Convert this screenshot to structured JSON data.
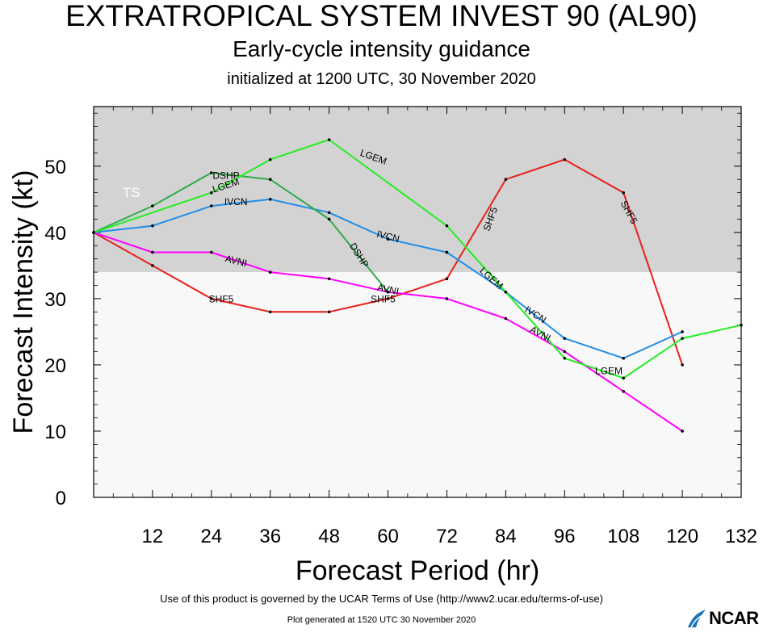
{
  "header": {
    "title": "EXTRATROPICAL SYSTEM INVEST 90 (AL90)",
    "subtitle": "Early-cycle intensity guidance",
    "init": "initialized at 1200 UTC, 30 November 2020"
  },
  "footer": {
    "terms": "Use of this product is governed by the UCAR Terms of Use (http://www2.ucar.edu/terms-of-use)",
    "generated": "Plot generated at 1520 UTC   30 November 2020",
    "logo_text": "NCAR"
  },
  "chart_data": {
    "type": "line",
    "xlabel": "Forecast Period (hr)",
    "ylabel": "Forecast Intensity (kt)",
    "xlim": [
      0,
      132
    ],
    "ylim": [
      0,
      59
    ],
    "xticks": [
      12,
      24,
      36,
      48,
      60,
      72,
      84,
      96,
      108,
      120,
      132
    ],
    "yticks": [
      0,
      10,
      20,
      30,
      40,
      50
    ],
    "threshold_band": {
      "label": "TS",
      "from": 34,
      "to": 59,
      "color": "#d3d3d3"
    },
    "lower_band_color": "#f8f8f8",
    "series": [
      {
        "name": "SHF5",
        "color": "#e8201c",
        "x": [
          0,
          12,
          24,
          36,
          48,
          60,
          72,
          84,
          96,
          108,
          120
        ],
        "y": [
          40,
          35,
          30,
          28,
          28,
          30,
          33,
          48,
          51,
          46,
          20
        ],
        "labels": [
          {
            "x": 26,
            "y": 29.8,
            "rot": 0
          },
          {
            "x": 59,
            "y": 29.8,
            "rot": 0
          },
          {
            "x": 81,
            "y": 42,
            "rot": -70
          },
          {
            "x": 109,
            "y": 43,
            "rot": 62
          }
        ]
      },
      {
        "name": "AVNI",
        "color": "#ff00ff",
        "x": [
          0,
          12,
          24,
          36,
          48,
          60,
          72,
          84,
          96,
          108,
          120
        ],
        "y": [
          40,
          37,
          37,
          34,
          33,
          31,
          30,
          27,
          22,
          16,
          10
        ],
        "labels": [
          {
            "x": 29,
            "y": 35.6,
            "rot": 14
          },
          {
            "x": 60,
            "y": 31.3,
            "rot": 12
          },
          {
            "x": 91,
            "y": 24.6,
            "rot": 28
          }
        ]
      },
      {
        "name": "IVCN",
        "color": "#1f8fe8",
        "x": [
          0,
          12,
          24,
          36,
          48,
          60,
          72,
          84,
          96,
          108,
          120
        ],
        "y": [
          40,
          41,
          44,
          45,
          43,
          39,
          37,
          31,
          24,
          21,
          25
        ],
        "labels": [
          {
            "x": 29,
            "y": 44.5,
            "rot": 0
          },
          {
            "x": 60,
            "y": 39.3,
            "rot": 14
          },
          {
            "x": 90,
            "y": 27.5,
            "rot": 32
          }
        ]
      },
      {
        "name": "DSHP",
        "color": "#2eac4a",
        "x": [
          0,
          12,
          24,
          36,
          48,
          60
        ],
        "y": [
          40,
          44,
          49,
          48,
          42,
          31
        ],
        "labels": [
          {
            "x": 27,
            "y": 48.5,
            "rot": 0
          },
          {
            "x": 54,
            "y": 36.5,
            "rot": 58
          }
        ]
      },
      {
        "name": "LGEM",
        "color": "#22ee22",
        "x": [
          0,
          24,
          36,
          48,
          72,
          84,
          96,
          108,
          120,
          132
        ],
        "y": [
          40,
          46,
          51,
          54,
          41,
          31,
          21,
          18,
          24,
          26
        ],
        "labels": [
          {
            "x": 27,
            "y": 47,
            "rot": -18
          },
          {
            "x": 57,
            "y": 51.3,
            "rot": 20
          },
          {
            "x": 81,
            "y": 33,
            "rot": 42
          },
          {
            "x": 105,
            "y": 19,
            "rot": 0
          }
        ]
      }
    ]
  }
}
